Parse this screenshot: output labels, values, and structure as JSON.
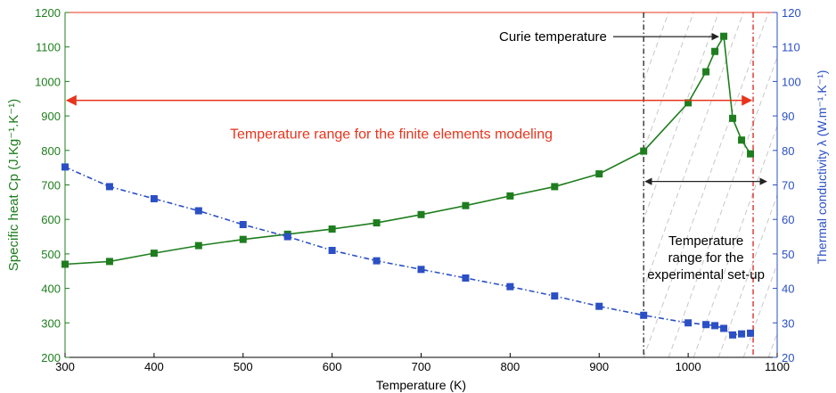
{
  "chart_data": {
    "type": "line",
    "xlabel": "Temperature (K)",
    "ylabel_left": "Specific heat Cp (J.Kg⁻¹.K⁻¹)",
    "ylabel_right": "Thermal conductivity λ (W.m⁻¹.K⁻¹)",
    "xlim": [
      300,
      1100
    ],
    "ylim_left": [
      200,
      1200
    ],
    "ylim_right": [
      20,
      120
    ],
    "xticks": [
      "300",
      "400",
      "500",
      "600",
      "700",
      "800",
      "900",
      "1000",
      "1100"
    ],
    "yticks_left": [
      "200",
      "300",
      "400",
      "500",
      "600",
      "700",
      "800",
      "900",
      "1000",
      "1100",
      "1200"
    ],
    "yticks_right": [
      "20",
      "30",
      "40",
      "50",
      "60",
      "70",
      "80",
      "90",
      "100",
      "110",
      "120"
    ],
    "grid": false,
    "colors": {
      "cp": "#1e7d1e",
      "lambda": "#2b4fc4",
      "range": "#e8341c",
      "curie_line": "#222222",
      "limit_line": "#d82020",
      "hatch": "#c8c8c8"
    },
    "series": [
      {
        "axis": "left",
        "x": [
          300,
          350,
          400,
          450,
          500,
          550,
          600,
          650,
          700,
          750,
          800,
          850,
          900,
          950,
          1000,
          1020,
          1030,
          1040,
          1050,
          1060,
          1070
        ],
        "y": [
          470,
          478,
          502,
          524,
          542,
          557,
          572,
          590,
          614,
          640,
          668,
          695,
          732,
          798,
          938,
          1028,
          1087,
          1131,
          893,
          830,
          790
        ]
      },
      {
        "axis": "right",
        "x": [
          300,
          350,
          400,
          450,
          500,
          550,
          600,
          650,
          700,
          750,
          800,
          850,
          900,
          950,
          1000,
          1020,
          1030,
          1040,
          1050,
          1060,
          1070
        ],
        "y": [
          75.2,
          69.5,
          66.0,
          62.5,
          58.5,
          55.0,
          51.0,
          48.0,
          45.5,
          43.0,
          40.5,
          37.8,
          34.8,
          32.2,
          30.0,
          29.5,
          29.2,
          28.4,
          26.5,
          26.8,
          27.0
        ]
      }
    ],
    "annotations": {
      "range_fem": "Temperature range for the finite elements modeling",
      "curie": "Curie temperature",
      "range_exp": [
        "Temperature",
        "range for the",
        "experimental set-up"
      ]
    },
    "markers": {
      "curie_x": 950,
      "limit_x": 1073,
      "fem_range": [
        300,
        1073
      ],
      "fem_range_y": 945,
      "exp_range": [
        950,
        1090
      ],
      "exp_range_y": 710,
      "curie_point": [
        1040,
        1131
      ],
      "curie_label_y": 1130
    }
  }
}
